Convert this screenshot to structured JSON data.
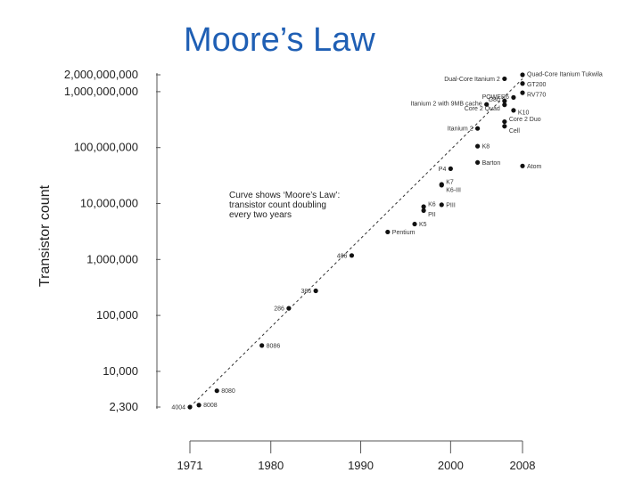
{
  "slide": {
    "title": "Moore’s Law"
  },
  "chart_data": {
    "type": "scatter",
    "title": "Moore’s Law",
    "ylabel": "Transistor count",
    "xlabel": "",
    "y_scale": "log",
    "ylim": [
      2300,
      2000000000
    ],
    "xlim": [
      1971,
      2008
    ],
    "y_ticks": [
      {
        "value": 2000000000,
        "label": "2,000,000,000"
      },
      {
        "value": 1000000000,
        "label": "1,000,000,000"
      },
      {
        "value": 100000000,
        "label": "100,000,000"
      },
      {
        "value": 10000000,
        "label": "10,000,000"
      },
      {
        "value": 1000000,
        "label": "1,000,000"
      },
      {
        "value": 100000,
        "label": "100,000"
      },
      {
        "value": 10000,
        "label": "10,000"
      },
      {
        "value": 2300,
        "label": "2,300"
      }
    ],
    "x_ticks": [
      {
        "value": 1971,
        "label": "1971"
      },
      {
        "value": 1980,
        "label": "1980"
      },
      {
        "value": 1990,
        "label": "1990"
      },
      {
        "value": 2000,
        "label": "2000"
      },
      {
        "value": 2008,
        "label": "2008"
      }
    ],
    "annotation": [
      "Curve shows ‘Moore’s Law’:",
      "transistor count doubling",
      "every two years"
    ],
    "trend": {
      "label": "Moore’s Law",
      "points": [
        [
          1971,
          2300
        ],
        [
          2008,
          1700000000
        ]
      ]
    },
    "points": [
      {
        "label": "4004",
        "x": 1971,
        "y": 2300,
        "label_side": "left"
      },
      {
        "label": "8008",
        "x": 1972,
        "y": 2500,
        "label_side": "right"
      },
      {
        "label": "8080",
        "x": 1974,
        "y": 4500,
        "label_side": "right"
      },
      {
        "label": "8086",
        "x": 1979,
        "y": 29000,
        "label_side": "right"
      },
      {
        "label": "286",
        "x": 1982,
        "y": 134000,
        "label_side": "left"
      },
      {
        "label": "386",
        "x": 1985,
        "y": 275000,
        "label_side": "left"
      },
      {
        "label": "486",
        "x": 1989,
        "y": 1180000,
        "label_side": "left"
      },
      {
        "label": "Pentium",
        "x": 1993,
        "y": 3100000,
        "label_side": "right"
      },
      {
        "label": "K5",
        "x": 1996,
        "y": 4300000,
        "label_side": "right"
      },
      {
        "label": "K6",
        "x": 1997,
        "y": 8800000,
        "label_side": "right"
      },
      {
        "label": "PII",
        "x": 1997,
        "y": 7500000,
        "label_side": "right"
      },
      {
        "label": "PIII",
        "x": 1999,
        "y": 9500000,
        "label_side": "right"
      },
      {
        "label": "K7",
        "x": 1999,
        "y": 22000000,
        "label_side": "right"
      },
      {
        "label": "K6-III",
        "x": 1999,
        "y": 21300000,
        "label_side": "right"
      },
      {
        "label": "P4",
        "x": 2000,
        "y": 42000000,
        "label_side": "left"
      },
      {
        "label": "Barton",
        "x": 2003,
        "y": 54300000,
        "label_side": "right"
      },
      {
        "label": "K8",
        "x": 2003,
        "y": 105900000,
        "label_side": "right"
      },
      {
        "label": "Itanium 2",
        "x": 2003,
        "y": 220000000,
        "label_side": "left"
      },
      {
        "label": "Itanium 2 with 9MB cache",
        "x": 2004,
        "y": 592000000,
        "label_side": "left"
      },
      {
        "label": "Core 2 Quad",
        "x": 2006,
        "y": 582000000,
        "label_side": "left"
      },
      {
        "label": "G80",
        "x": 2006,
        "y": 681000000,
        "label_side": "left"
      },
      {
        "label": "POWER6",
        "x": 2007,
        "y": 789000000,
        "label_side": "left"
      },
      {
        "label": "Dual-Core Itanium 2",
        "x": 2006,
        "y": 1700000000,
        "label_side": "left"
      },
      {
        "label": "K10",
        "x": 2007,
        "y": 463000000,
        "label_side": "right"
      },
      {
        "label": "Core 2 Duo",
        "x": 2006,
        "y": 291000000,
        "label_side": "right"
      },
      {
        "label": "Cell",
        "x": 2006,
        "y": 241000000,
        "label_side": "right"
      },
      {
        "label": "Quad-Core Itanium Tukwila",
        "x": 2008,
        "y": 2000000000,
        "label_side": "right"
      },
      {
        "label": "GT200",
        "x": 2008,
        "y": 1400000000,
        "label_side": "right"
      },
      {
        "label": "RV770",
        "x": 2008,
        "y": 956000000,
        "label_side": "right"
      },
      {
        "label": "Atom",
        "x": 2008,
        "y": 47000000,
        "label_side": "right"
      }
    ]
  }
}
